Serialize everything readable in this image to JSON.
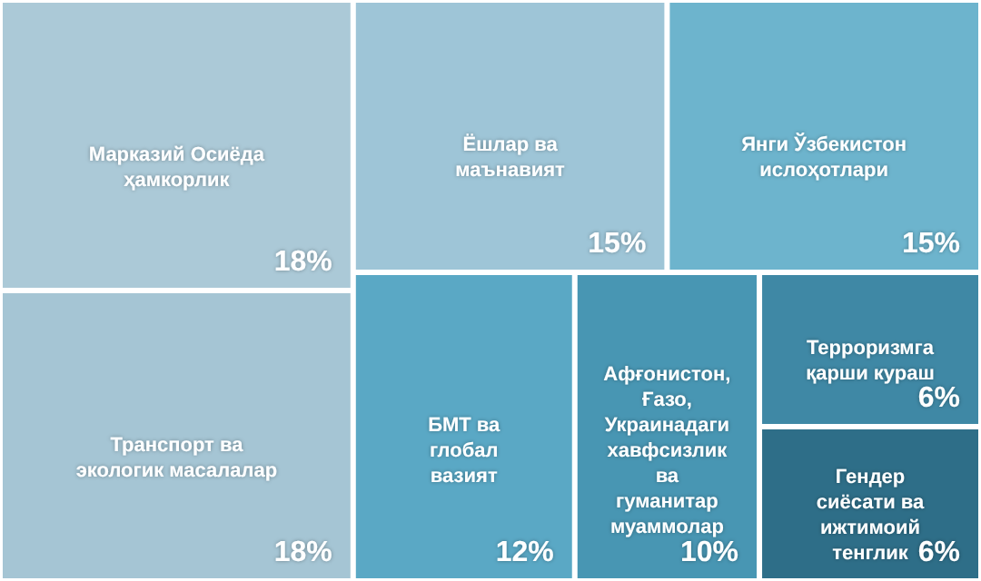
{
  "chart_data": {
    "type": "other",
    "categories": [
      "Марказий Осиёда ҳамкорлик",
      "Транспорт ва экологик масалалар",
      "Ёшлар ва маънавият",
      "Янги Ўзбекистон ислоҳотлари",
      "БМТ ва глобал вазият",
      "Афғонистон, Ғазо, Украинадаги хавфсизлик ва гуманитар муаммолар",
      "Терроризмга қарши кураш",
      "Гендер сиёсати ва ижтимоий тенглик"
    ],
    "values": [
      18,
      18,
      15,
      15,
      12,
      10,
      6,
      6
    ],
    "value_labels": [
      "18%",
      "18%",
      "15%",
      "15%",
      "12%",
      "10%",
      "6%",
      "6%"
    ],
    "colors": [
      "#abc9d7",
      "#a5c5d4",
      "#9ec5d7",
      "#6db4cd",
      "#5aa8c5",
      "#4896b3",
      "#3f88a5",
      "#2e6e88"
    ]
  }
}
